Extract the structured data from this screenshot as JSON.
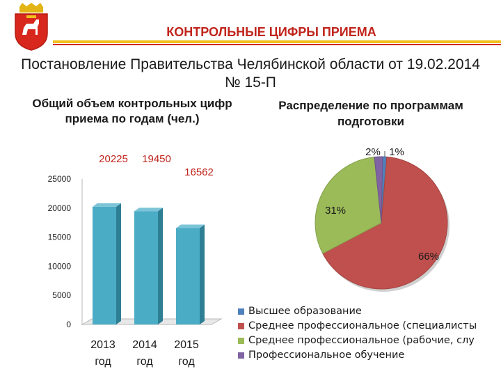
{
  "header": {
    "title": "КОНТРОЛЬНЫЕ ЦИФРЫ ПРИЕМА",
    "subtitle": "Постановление Правительства Челябинской области от 19.02.2014 № 15-П"
  },
  "colors": {
    "bar": "#4bacc6",
    "bar_side": "#2e7f94",
    "accent_red": "#c0241c"
  },
  "chart_data": [
    {
      "type": "bar",
      "title": "Общий объем контрольных цифр приема по годам (чел.)",
      "categories": [
        "2013 год",
        "2014 год",
        "2015 год"
      ],
      "category_lines": [
        [
          "2013",
          "год"
        ],
        [
          "2014",
          "год"
        ],
        [
          "2015",
          "год"
        ]
      ],
      "values": [
        20225,
        19450,
        16562
      ],
      "value_labels": [
        "20225",
        "19450",
        "16562"
      ],
      "ylim": [
        0,
        25000
      ],
      "yticks": [
        "0",
        "5000",
        "10000",
        "15000",
        "20000",
        "25000"
      ],
      "grid": false
    },
    {
      "type": "pie",
      "title": "Распределение по программам подготовки",
      "legend_position": "bottom",
      "slices": [
        {
          "name": "Высшее образование",
          "value": 1,
          "label": "1%",
          "color": "#4f81bd"
        },
        {
          "name": "Среднее профессиональное (специалисты",
          "value": 66,
          "label": "66%",
          "color": "#c0504d"
        },
        {
          "name": "Среднее профессиональное (рабочие, слу",
          "value": 31,
          "label": "31%",
          "color": "#9bbb59"
        },
        {
          "name": "Профессиональное обучение",
          "value": 2,
          "label": "2%",
          "color": "#8064a2"
        }
      ]
    }
  ]
}
